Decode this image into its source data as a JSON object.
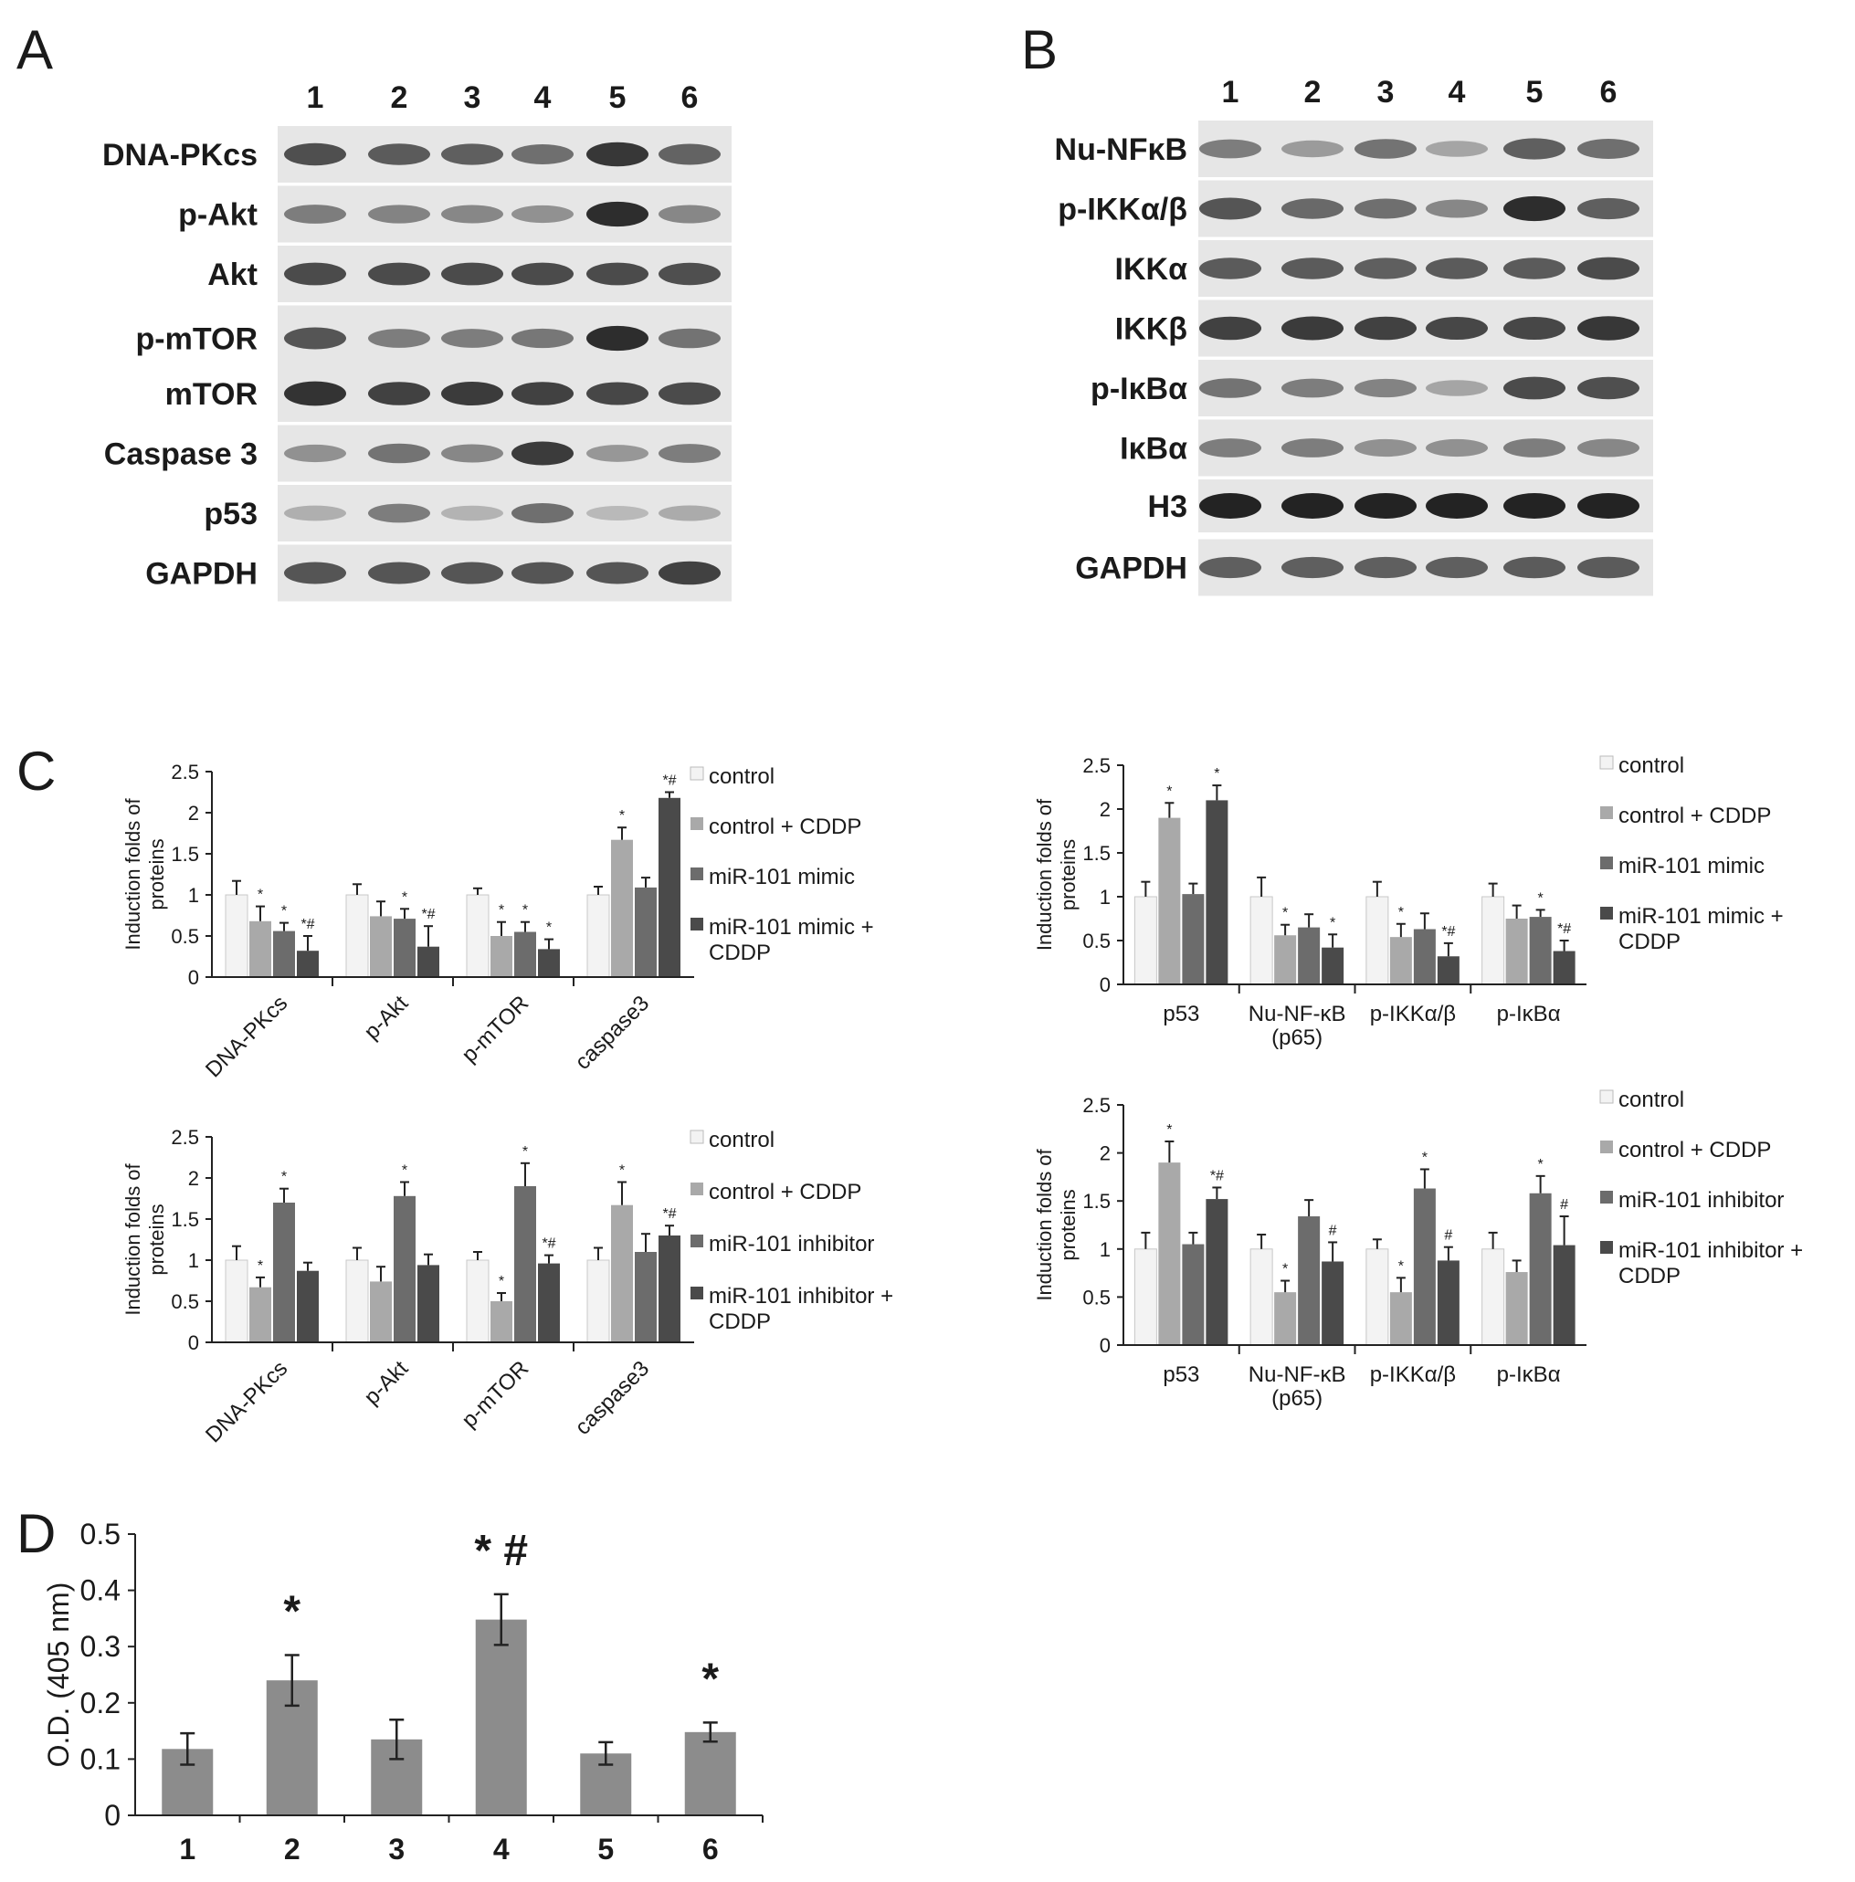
{
  "panel_labels": {
    "A": "A",
    "B": "B",
    "C": "C",
    "D": "D"
  },
  "blot_A": {
    "lanes": [
      "1",
      "2",
      "3",
      "4",
      "5",
      "6"
    ],
    "rows": [
      {
        "label": "DNA-PKcs",
        "intensity": [
          0.78,
          0.72,
          0.7,
          0.62,
          0.9,
          0.68
        ]
      },
      {
        "label": "p-Akt",
        "intensity": [
          0.55,
          0.52,
          0.5,
          0.45,
          0.95,
          0.5
        ]
      },
      {
        "label": "Akt",
        "intensity": [
          0.8,
          0.8,
          0.8,
          0.8,
          0.8,
          0.78
        ]
      },
      {
        "label": "p-mTOR",
        "intensity": [
          0.75,
          0.55,
          0.55,
          0.58,
          0.95,
          0.6
        ]
      },
      {
        "label": "mTOR",
        "intensity": [
          0.92,
          0.85,
          0.88,
          0.85,
          0.82,
          0.8
        ]
      },
      {
        "label": "Caspase 3",
        "intensity": [
          0.45,
          0.6,
          0.5,
          0.88,
          0.42,
          0.55
        ]
      },
      {
        "label": "p53",
        "intensity": [
          0.3,
          0.55,
          0.28,
          0.62,
          0.25,
          0.32
        ]
      },
      {
        "label": "GAPDH",
        "intensity": [
          0.75,
          0.75,
          0.75,
          0.75,
          0.75,
          0.85
        ]
      }
    ]
  },
  "blot_B": {
    "lanes": [
      "1",
      "2",
      "3",
      "4",
      "5",
      "6"
    ],
    "rows": [
      {
        "label": "Nu-NFκB",
        "intensity": [
          0.55,
          0.4,
          0.6,
          0.35,
          0.7,
          0.62
        ]
      },
      {
        "label": "p-IKKα/β",
        "intensity": [
          0.75,
          0.65,
          0.62,
          0.5,
          0.95,
          0.7
        ]
      },
      {
        "label": "IKKα",
        "intensity": [
          0.72,
          0.72,
          0.7,
          0.72,
          0.72,
          0.8
        ]
      },
      {
        "label": "IKKβ",
        "intensity": [
          0.85,
          0.88,
          0.85,
          0.82,
          0.82,
          0.9
        ]
      },
      {
        "label": "p-IκBα",
        "intensity": [
          0.6,
          0.55,
          0.52,
          0.35,
          0.8,
          0.78
        ]
      },
      {
        "label": "IκBα",
        "intensity": [
          0.55,
          0.55,
          0.45,
          0.45,
          0.55,
          0.5
        ]
      },
      {
        "label": "H3",
        "intensity": [
          1.0,
          1.0,
          1.0,
          1.0,
          1.0,
          1.0
        ]
      },
      {
        "label": "GAPDH",
        "intensity": [
          0.7,
          0.7,
          0.7,
          0.7,
          0.72,
          0.72
        ]
      }
    ]
  },
  "colors": {
    "control": "#f3f3f3",
    "control_cddp": "#a9a9a9",
    "treat": "#6c6c6c",
    "treat_cddp": "#4a4a4a",
    "bar_d": "#8c8c8c"
  },
  "chart_data": [
    {
      "type": "bar",
      "ylabel": "Induction folds of proteins",
      "ylim": [
        0,
        2.5
      ],
      "yticks": [
        "0",
        "0.5",
        "1",
        "1.5",
        "2",
        "2.5"
      ],
      "categories": [
        "DNA-PKcs",
        "p-Akt",
        "p-mTOR",
        "caspase3"
      ],
      "series": [
        {
          "name": "control",
          "values": [
            1.0,
            1.0,
            1.0,
            1.0
          ],
          "err": [
            0.17,
            0.13,
            0.08,
            0.1
          ]
        },
        {
          "name": "control + CDDP",
          "values": [
            0.68,
            0.74,
            0.5,
            1.67
          ],
          "err": [
            0.18,
            0.18,
            0.17,
            0.15
          ]
        },
        {
          "name": "miR-101 mimic",
          "values": [
            0.56,
            0.71,
            0.55,
            1.09
          ],
          "err": [
            0.1,
            0.12,
            0.12,
            0.12
          ]
        },
        {
          "name": "miR-101 mimic + CDDP",
          "values": [
            0.32,
            0.37,
            0.34,
            2.18
          ],
          "err": [
            0.18,
            0.25,
            0.12,
            0.07
          ]
        }
      ],
      "marks": [
        [
          "",
          "*",
          "*",
          "*#"
        ],
        [
          "",
          "",
          "*",
          "*#"
        ],
        [
          "",
          "*",
          "*",
          "*"
        ],
        [
          "",
          "*",
          "",
          "*#"
        ]
      ],
      "legend_lines": [
        [
          "control"
        ],
        [
          "control + CDDP"
        ],
        [
          "miR-101 mimic"
        ],
        [
          "miR-101 mimic +",
          "CDDP"
        ]
      ]
    },
    {
      "type": "bar",
      "ylabel": "Induction folds of proteins",
      "ylim": [
        0,
        2.5
      ],
      "yticks": [
        "0",
        "0.5",
        "1",
        "1.5",
        "2",
        "2.5"
      ],
      "categories": [
        "p53",
        "Nu-NF-κB (p65)",
        "p-IKKα/β",
        "p-IκBα"
      ],
      "category_lines": [
        [
          "p53"
        ],
        [
          "Nu-NF-κB",
          "(p65)"
        ],
        [
          "p-IKKα/β"
        ],
        [
          "p-IκBα"
        ]
      ],
      "series": [
        {
          "name": "control",
          "values": [
            1.0,
            1.0,
            1.0,
            1.0
          ],
          "err": [
            0.17,
            0.22,
            0.17,
            0.15
          ]
        },
        {
          "name": "control + CDDP",
          "values": [
            1.9,
            0.56,
            0.54,
            0.75
          ],
          "err": [
            0.17,
            0.12,
            0.15,
            0.15
          ]
        },
        {
          "name": "miR-101 mimic",
          "values": [
            1.03,
            0.65,
            0.63,
            0.77
          ],
          "err": [
            0.12,
            0.15,
            0.18,
            0.08
          ]
        },
        {
          "name": "miR-101 mimic + CDDP",
          "values": [
            2.1,
            0.42,
            0.32,
            0.38
          ],
          "err": [
            0.17,
            0.15,
            0.15,
            0.12
          ]
        }
      ],
      "marks": [
        [
          "",
          "*",
          "",
          "*"
        ],
        [
          "",
          "*",
          "",
          "*"
        ],
        [
          "",
          "*",
          "",
          "*#"
        ],
        [
          "",
          "",
          "*",
          "*#"
        ]
      ],
      "legend_lines": [
        [
          "control"
        ],
        [
          "control + CDDP"
        ],
        [
          "miR-101 mimic"
        ],
        [
          "miR-101 mimic +",
          "CDDP"
        ]
      ]
    },
    {
      "type": "bar",
      "ylabel": "Induction folds of proteins",
      "ylim": [
        0,
        2.5
      ],
      "yticks": [
        "0",
        "0.5",
        "1",
        "1.5",
        "2",
        "2.5"
      ],
      "categories": [
        "DNA-PKcs",
        "p-Akt",
        "p-mTOR",
        "caspase3"
      ],
      "series": [
        {
          "name": "control",
          "values": [
            1.0,
            1.0,
            1.0,
            1.0
          ],
          "err": [
            0.17,
            0.15,
            0.1,
            0.15
          ]
        },
        {
          "name": "control + CDDP",
          "values": [
            0.67,
            0.74,
            0.5,
            1.67
          ],
          "err": [
            0.12,
            0.18,
            0.1,
            0.28
          ]
        },
        {
          "name": "miR-101 inhibitor",
          "values": [
            1.7,
            1.78,
            1.9,
            1.1
          ],
          "err": [
            0.17,
            0.17,
            0.28,
            0.22
          ]
        },
        {
          "name": "miR-101 inhibitor + CDDP",
          "values": [
            0.87,
            0.94,
            0.96,
            1.3
          ],
          "err": [
            0.1,
            0.13,
            0.1,
            0.12
          ]
        }
      ],
      "marks": [
        [
          "",
          "*",
          "*",
          ""
        ],
        [
          "",
          "",
          "*",
          ""
        ],
        [
          "",
          "*",
          "*",
          "*#"
        ],
        [
          "",
          "*",
          "",
          "*#"
        ]
      ],
      "legend_lines": [
        [
          "control"
        ],
        [
          "control + CDDP"
        ],
        [
          "miR-101 inhibitor"
        ],
        [
          "miR-101 inhibitor +",
          "CDDP"
        ]
      ]
    },
    {
      "type": "bar",
      "ylabel": "Induction folds of proteins",
      "ylim": [
        0,
        2.5
      ],
      "yticks": [
        "0",
        "0.5",
        "1",
        "1.5",
        "2",
        "2.5"
      ],
      "categories": [
        "p53",
        "Nu-NF-κB (p65)",
        "p-IKKα/β",
        "p-IκBα"
      ],
      "category_lines": [
        [
          "p53"
        ],
        [
          "Nu-NF-κB",
          "(p65)"
        ],
        [
          "p-IKKα/β"
        ],
        [
          "p-IκBα"
        ]
      ],
      "series": [
        {
          "name": "control",
          "values": [
            1.0,
            1.0,
            1.0,
            1.0
          ],
          "err": [
            0.17,
            0.15,
            0.1,
            0.17
          ]
        },
        {
          "name": "control + CDDP",
          "values": [
            1.9,
            0.55,
            0.55,
            0.76
          ],
          "err": [
            0.22,
            0.12,
            0.15,
            0.12
          ]
        },
        {
          "name": "miR-101 inhibitor",
          "values": [
            1.05,
            1.34,
            1.63,
            1.58
          ],
          "err": [
            0.12,
            0.17,
            0.2,
            0.18
          ]
        },
        {
          "name": "miR-101 inhibitor + CDDP",
          "values": [
            1.52,
            0.87,
            0.88,
            1.04
          ],
          "err": [
            0.12,
            0.2,
            0.14,
            0.3
          ]
        }
      ],
      "marks": [
        [
          "",
          "*",
          "",
          "*#"
        ],
        [
          "",
          "*",
          "",
          "#"
        ],
        [
          "",
          "*",
          "*",
          "#"
        ],
        [
          "",
          "",
          "*",
          "#"
        ]
      ],
      "legend_lines": [
        [
          "control"
        ],
        [
          "control + CDDP"
        ],
        [
          "miR-101 inhibitor"
        ],
        [
          "miR-101 inhibitor +",
          "CDDP"
        ]
      ]
    },
    {
      "type": "bar",
      "ylabel": "O.D. (405 nm)",
      "ylim": [
        0,
        0.5
      ],
      "yticks": [
        "0",
        "0.1",
        "0.2",
        "0.3",
        "0.4",
        "0.5"
      ],
      "categories": [
        "1",
        "2",
        "3",
        "4",
        "5",
        "6"
      ],
      "values": [
        0.118,
        0.24,
        0.135,
        0.348,
        0.11,
        0.148
      ],
      "err": [
        0.028,
        0.045,
        0.035,
        0.045,
        0.02,
        0.017
      ],
      "marks": [
        "",
        "*",
        "",
        "* #",
        "",
        "*"
      ]
    }
  ]
}
